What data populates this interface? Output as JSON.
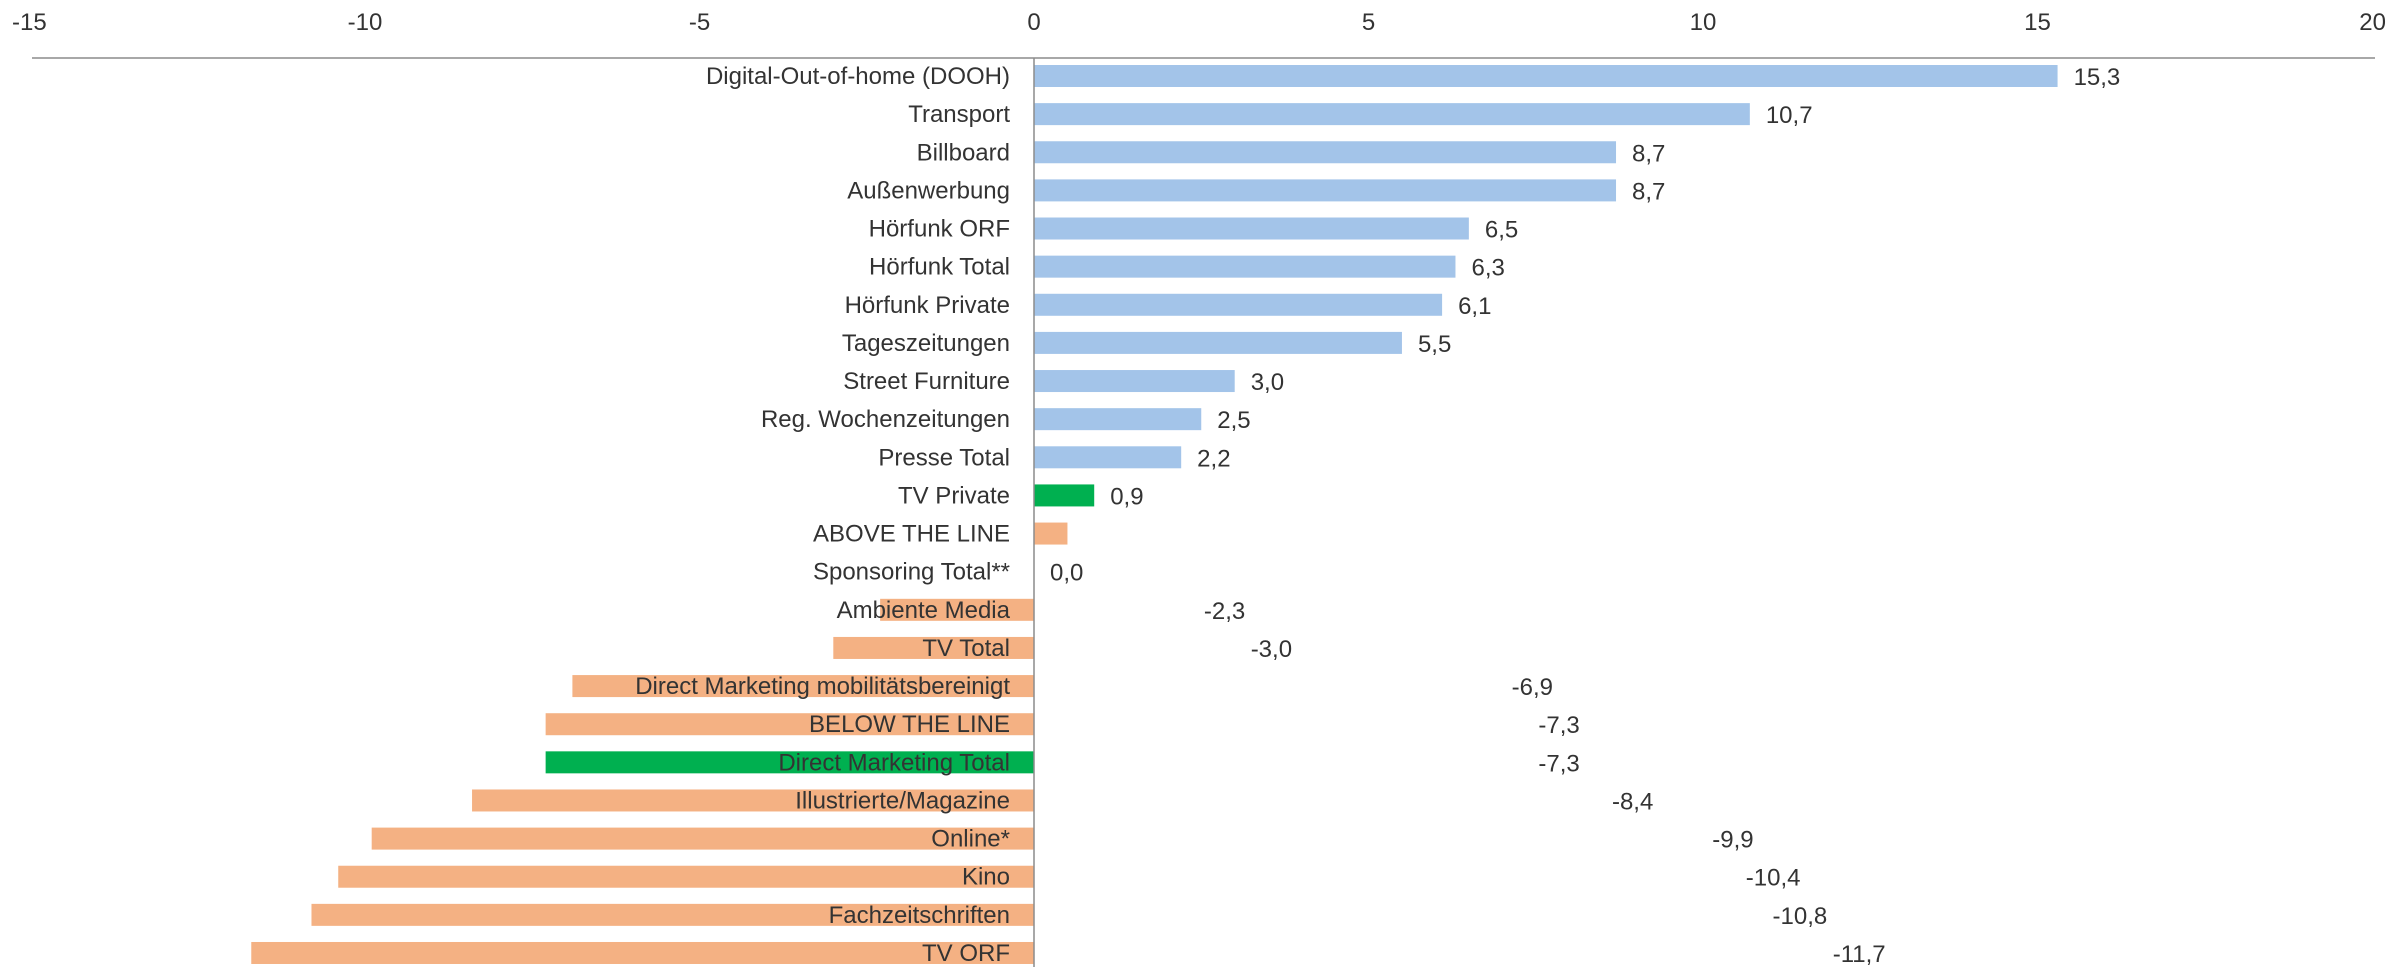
{
  "chart_data": {
    "type": "bar",
    "orientation": "horizontal",
    "categories": [
      "Digital-Out-of-home (DOOH)",
      "Transport",
      "Billboard",
      "Außenwerbung",
      "Hörfunk ORF",
      "Hörfunk Total",
      "Hörfunk Private",
      "Tageszeitungen",
      "Street Furniture",
      "Reg. Wochenzeitungen",
      "Presse Total",
      "TV Private",
      "ABOVE THE LINE",
      "Sponsoring Total**",
      "Ambiente Media",
      "TV Total",
      "Direct Marketing mobilitätsbereinigt",
      "BELOW THE LINE",
      "Direct Marketing Total",
      "Illustrierte/Magazine",
      "Online*",
      "Kino",
      "Fachzeitschriften",
      "TV ORF"
    ],
    "values": [
      15.3,
      10.7,
      8.7,
      8.7,
      6.5,
      6.3,
      6.1,
      5.5,
      3.0,
      2.5,
      2.2,
      0.9,
      0.5,
      0.0,
      -2.3,
      -3.0,
      -6.9,
      -7.3,
      -7.3,
      -8.4,
      -9.9,
      -10.4,
      -10.8,
      -11.7
    ],
    "value_labels": [
      "15,3",
      "10,7",
      "8,7",
      "8,7",
      "6,5",
      "6,3",
      "6,1",
      "5,5",
      "3,0",
      "2,5",
      "2,2",
      "0,9",
      "",
      "0,0",
      "-2,3",
      "-3,0",
      "-6,9",
      "-7,3",
      "-7,3",
      "-8,4",
      "-9,9",
      "-10,4",
      "-10,8",
      "-11,7"
    ],
    "bar_colors": [
      "#a3c4e9",
      "#a3c4e9",
      "#a3c4e9",
      "#a3c4e9",
      "#a3c4e9",
      "#a3c4e9",
      "#a3c4e9",
      "#a3c4e9",
      "#a3c4e9",
      "#a3c4e9",
      "#a3c4e9",
      "#00b050",
      "#f4b183",
      "#f4b183",
      "#f4b183",
      "#f4b183",
      "#f4b183",
      "#f4b183",
      "#00b050",
      "#f4b183",
      "#f4b183",
      "#f4b183",
      "#f4b183",
      "#f4b183"
    ],
    "xlim": [
      -15,
      20
    ],
    "xticks": [
      -15,
      -10,
      -5,
      0,
      5,
      10,
      15,
      20
    ],
    "xtick_labels": [
      "-15",
      "-10",
      "-5",
      "0",
      "5",
      "10",
      "15",
      "20"
    ],
    "axis_position": "top",
    "grid": false,
    "legend": "none",
    "title": "",
    "xlabel": "",
    "ylabel": ""
  }
}
